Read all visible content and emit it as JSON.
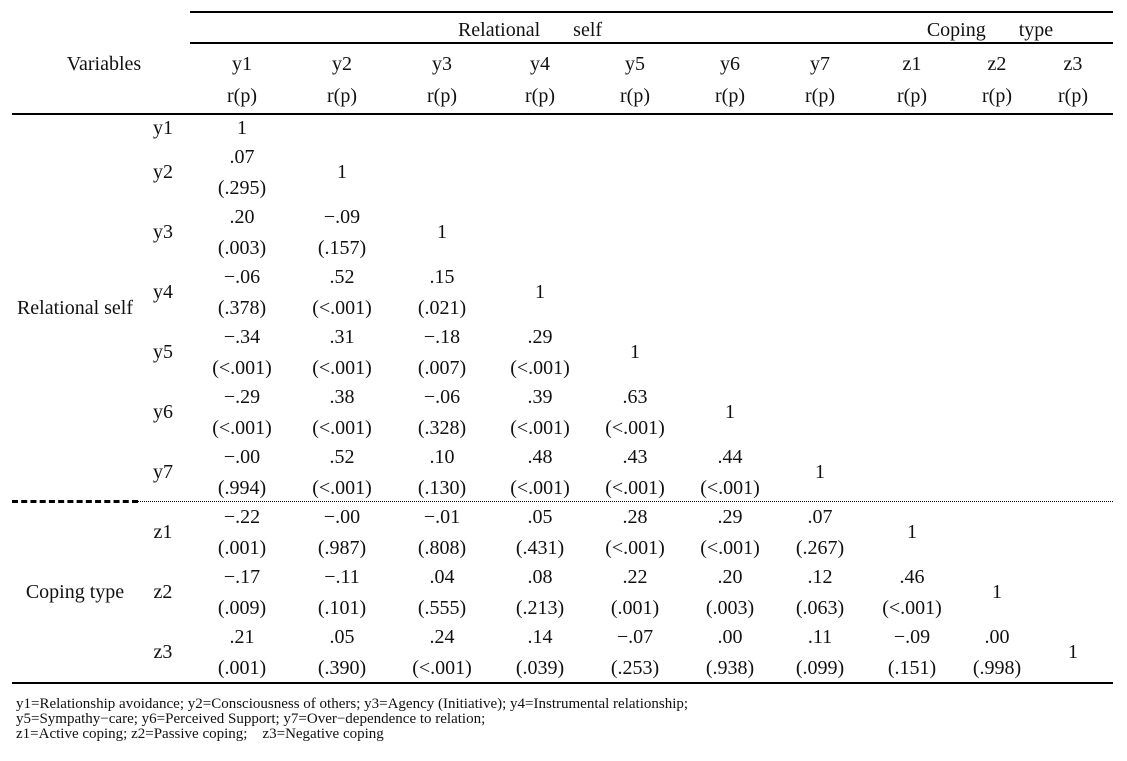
{
  "table": {
    "header": {
      "variables": "Variables",
      "groups": [
        "Relational self",
        "Coping type"
      ],
      "columns": [
        {
          "name": "y1",
          "stat": "r(p)"
        },
        {
          "name": "y2",
          "stat": "r(p)"
        },
        {
          "name": "y3",
          "stat": "r(p)"
        },
        {
          "name": "y4",
          "stat": "r(p)"
        },
        {
          "name": "y5",
          "stat": "r(p)"
        },
        {
          "name": "y6",
          "stat": "r(p)"
        },
        {
          "name": "y7",
          "stat": "r(p)"
        },
        {
          "name": "z1",
          "stat": "r(p)"
        },
        {
          "name": "z2",
          "stat": "r(p)"
        },
        {
          "name": "z3",
          "stat": "r(p)"
        }
      ]
    },
    "row_groups": [
      {
        "label": "Relational self",
        "rows": [
          {
            "label": "y1",
            "cells": [
              "1"
            ]
          },
          {
            "label": "y2",
            "cells": [
              {
                "r": ".07",
                "p": "(.295)"
              },
              "1"
            ]
          },
          {
            "label": "y3",
            "cells": [
              {
                "r": ".20",
                "p": "(.003)"
              },
              {
                "r": "−.09",
                "p": "(.157)"
              },
              "1"
            ]
          },
          {
            "label": "y4",
            "cells": [
              {
                "r": "−.06",
                "p": "(.378)"
              },
              {
                "r": ".52",
                "p": "(<.001)"
              },
              {
                "r": ".15",
                "p": "(.021)"
              },
              "1"
            ]
          },
          {
            "label": "y5",
            "cells": [
              {
                "r": "−.34",
                "p": "(<.001)"
              },
              {
                "r": ".31",
                "p": "(<.001)"
              },
              {
                "r": "−.18",
                "p": "(.007)"
              },
              {
                "r": ".29",
                "p": "(<.001)"
              },
              "1"
            ]
          },
          {
            "label": "y6",
            "cells": [
              {
                "r": "−.29",
                "p": "(<.001)"
              },
              {
                "r": ".38",
                "p": "(<.001)"
              },
              {
                "r": "−.06",
                "p": "(.328)"
              },
              {
                "r": ".39",
                "p": "(<.001)"
              },
              {
                "r": ".63",
                "p": "(<.001)"
              },
              "1"
            ]
          },
          {
            "label": "y7",
            "cells": [
              {
                "r": "−.00",
                "p": "(.994)"
              },
              {
                "r": ".52",
                "p": "(<.001)"
              },
              {
                "r": ".10",
                "p": "(.130)"
              },
              {
                "r": ".48",
                "p": "(<.001)"
              },
              {
                "r": ".43",
                "p": "(<.001)"
              },
              {
                "r": ".44",
                "p": "(<.001)"
              },
              "1"
            ]
          }
        ]
      },
      {
        "label": "Coping type",
        "rows": [
          {
            "label": "z1",
            "cells": [
              {
                "r": "−.22",
                "p": "(.001)"
              },
              {
                "r": "−.00",
                "p": "(.987)"
              },
              {
                "r": "−.01",
                "p": "(.808)"
              },
              {
                "r": ".05",
                "p": "(.431)"
              },
              {
                "r": ".28",
                "p": "(<.001)"
              },
              {
                "r": ".29",
                "p": "(<.001)"
              },
              {
                "r": ".07",
                "p": "(.267)"
              },
              "1"
            ]
          },
          {
            "label": "z2",
            "cells": [
              {
                "r": "−.17",
                "p": "(.009)"
              },
              {
                "r": "−.11",
                "p": "(.101)"
              },
              {
                "r": ".04",
                "p": "(.555)"
              },
              {
                "r": ".08",
                "p": "(.213)"
              },
              {
                "r": ".22",
                "p": "(.001)"
              },
              {
                "r": ".20",
                "p": "(.003)"
              },
              {
                "r": ".12",
                "p": "(.063)"
              },
              {
                "r": ".46",
                "p": "(<.001)"
              },
              "1"
            ]
          },
          {
            "label": "z3",
            "cells": [
              {
                "r": ".21",
                "p": "(.001)"
              },
              {
                "r": ".05",
                "p": "(.390)"
              },
              {
                "r": ".24",
                "p": "(<.001)"
              },
              {
                "r": ".14",
                "p": "(.039)"
              },
              {
                "r": "−.07",
                "p": "(.253)"
              },
              {
                "r": ".00",
                "p": "(.938)"
              },
              {
                "r": ".11",
                "p": "(.099)"
              },
              {
                "r": "−.09",
                "p": "(.151)"
              },
              {
                "r": ".00",
                "p": "(.998)"
              },
              "1"
            ]
          }
        ]
      }
    ],
    "footnotes": [
      "y1=Relationship avoidance; y2=Consciousness of others; y3=Agency (Initiative); y4=Instrumental relationship;",
      "y5=Sympathy−care; y6=Perceived Support; y7=Over−dependence to relation;",
      "z1=Active coping; z2=Passive coping;    z3=Negative coping"
    ]
  }
}
